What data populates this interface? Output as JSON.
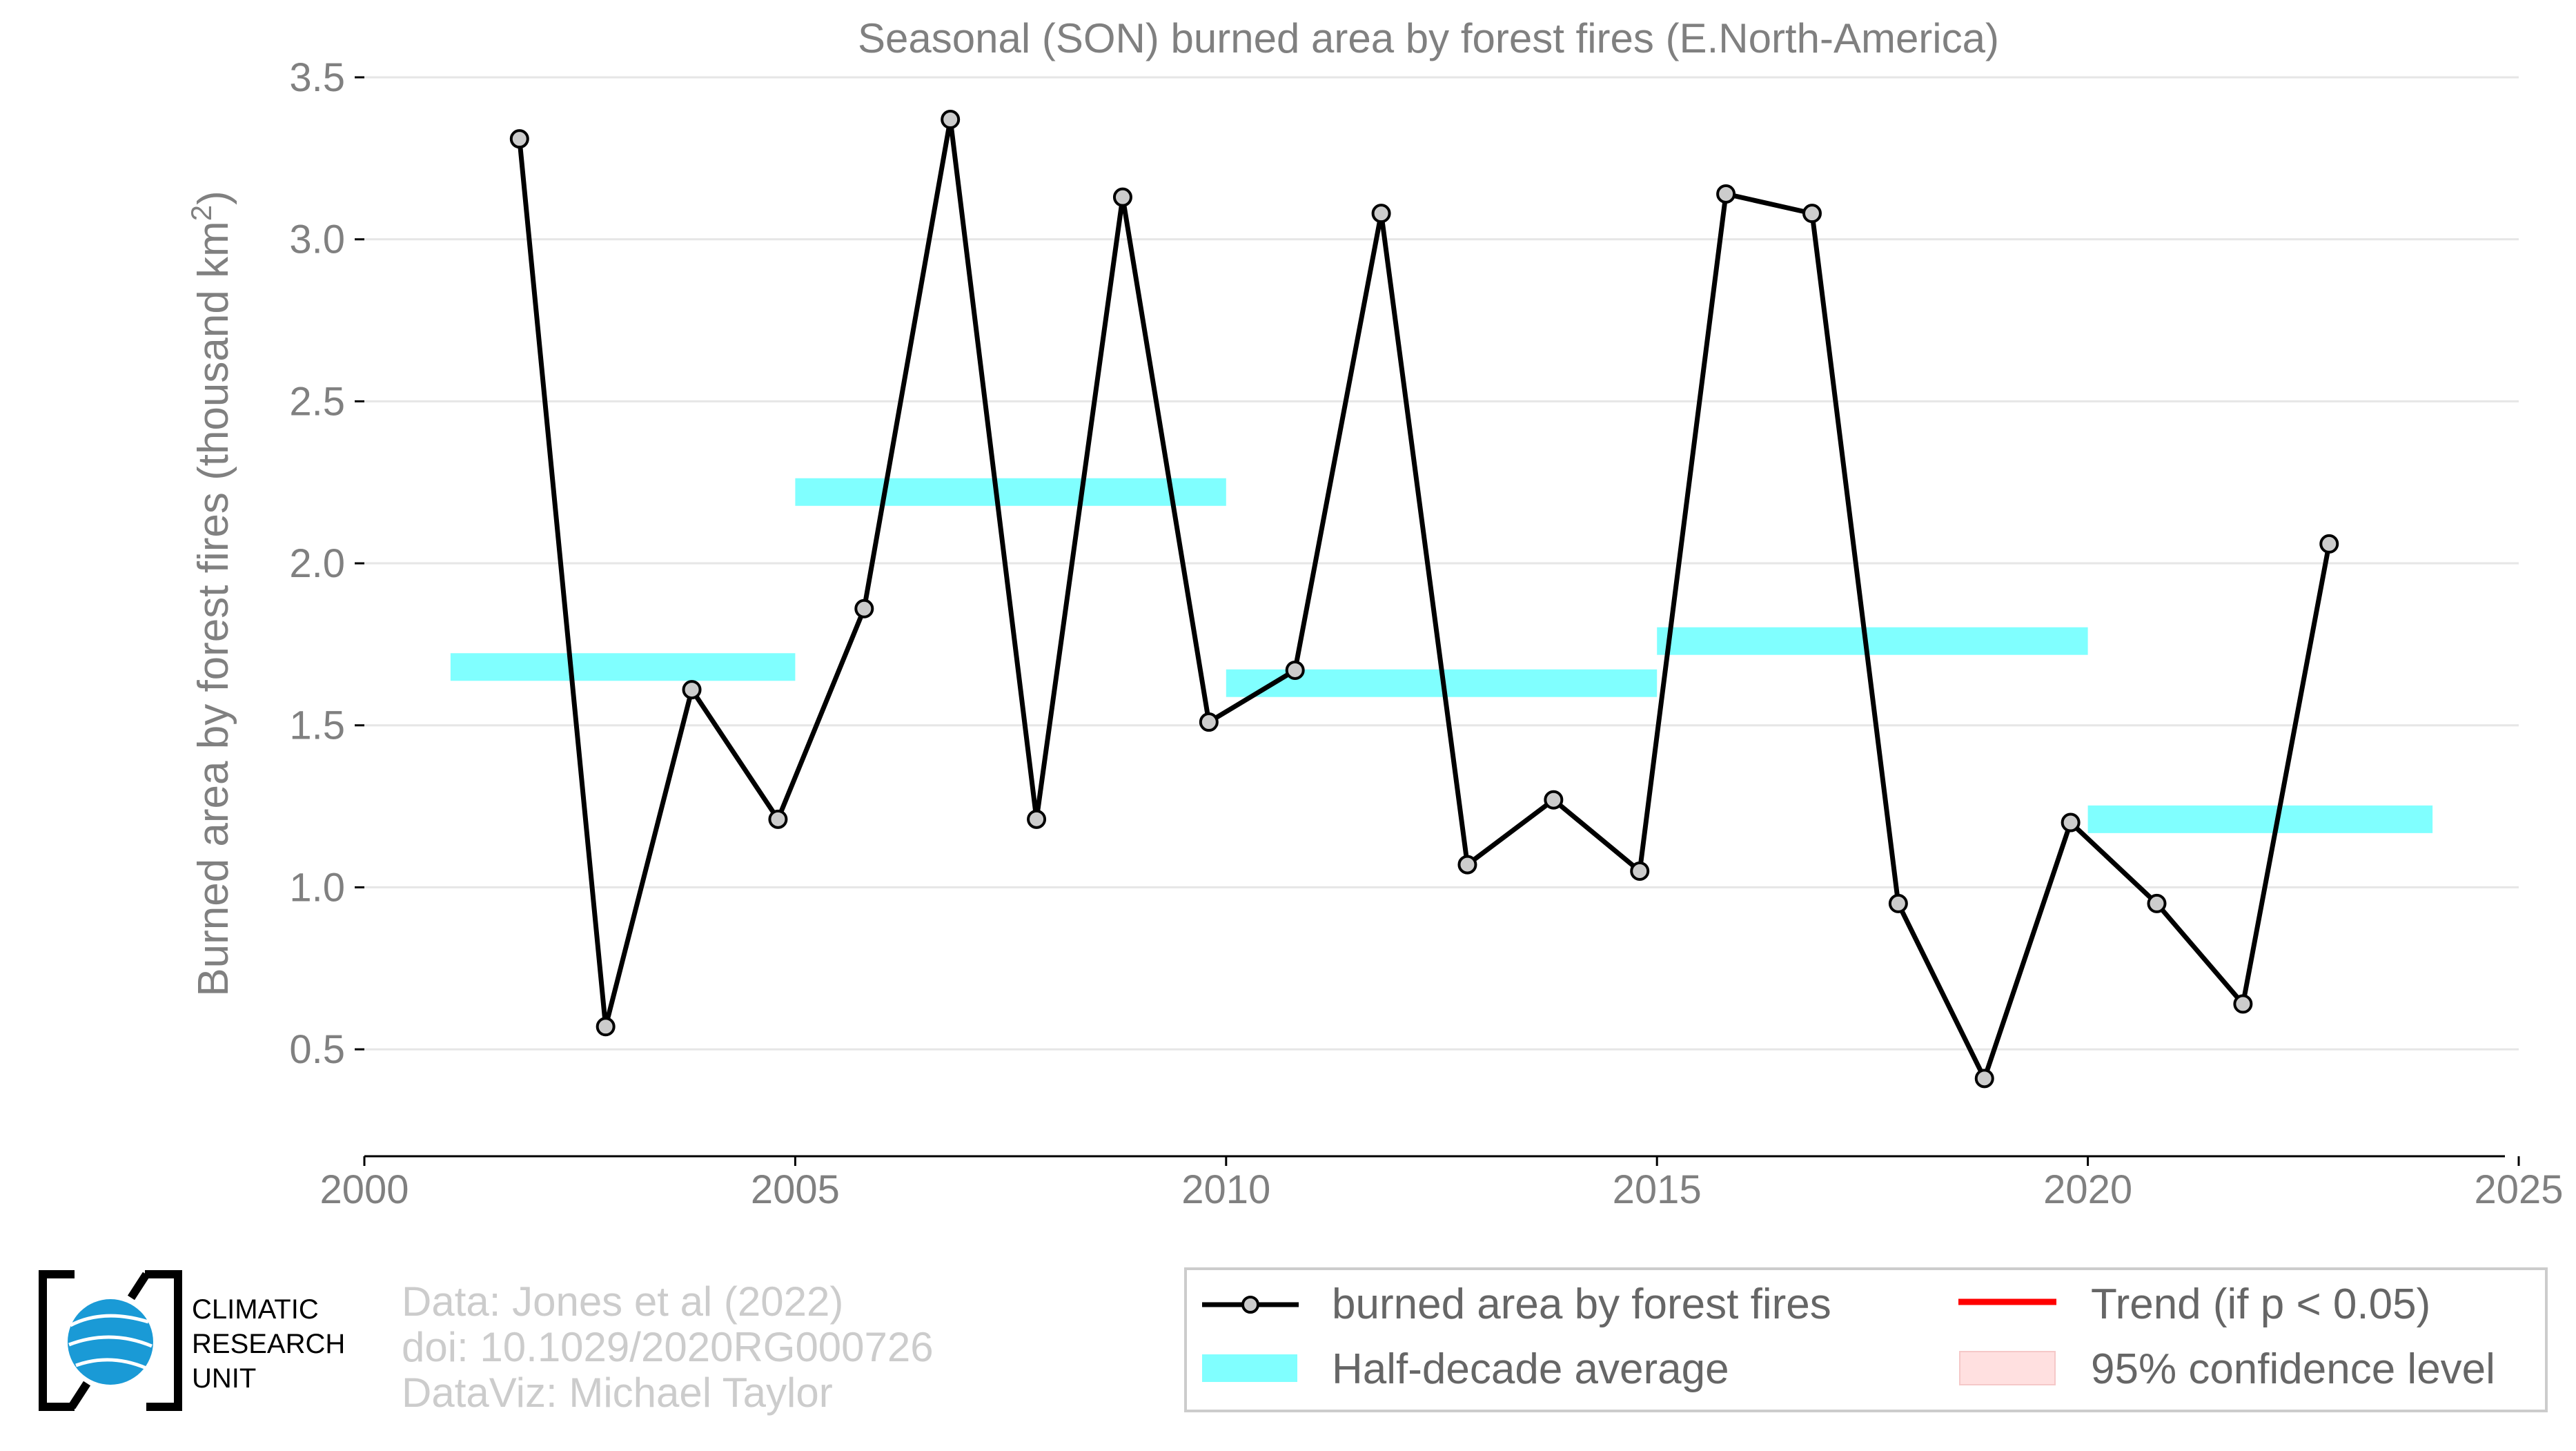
{
  "chart_data": {
    "type": "line",
    "title": "Seasonal (SON) burned area by forest fires (E.North-America)",
    "ylabel_main": "Burned area by forest fires (thousand km",
    "ylabel_sup": "2",
    "ylabel_end": ")",
    "xlabel": "",
    "xlim": [
      2000,
      2025
    ],
    "ylim": [
      0.17,
      3.5
    ],
    "xticks": [
      "2000",
      "2005",
      "2010",
      "2015",
      "2020",
      "2025"
    ],
    "yticks": [
      "0.5",
      "1.0",
      "1.5",
      "2.0",
      "2.5",
      "3.0",
      "3.5"
    ],
    "grid": "horizontal",
    "series": [
      {
        "name": "burned area by forest fires",
        "color": "#000000",
        "marker_fill": "#cccccc",
        "x": [
          2001.8,
          2002.8,
          2003.8,
          2004.8,
          2005.8,
          2006.8,
          2007.8,
          2008.8,
          2009.8,
          2010.8,
          2011.8,
          2012.8,
          2013.8,
          2014.8,
          2015.8,
          2016.8,
          2017.8,
          2018.8,
          2019.8,
          2020.8,
          2021.8,
          2022.8
        ],
        "y": [
          3.31,
          0.57,
          1.61,
          1.21,
          1.86,
          3.37,
          1.21,
          3.13,
          1.51,
          1.67,
          3.08,
          1.07,
          1.27,
          1.05,
          3.14,
          3.08,
          0.95,
          0.41,
          1.2,
          0.95,
          0.64,
          2.06
        ]
      }
    ],
    "half_decade_average": {
      "name": "Half-decade average",
      "color": "#80ffff",
      "segments": [
        {
          "x0": 2001,
          "x1": 2005,
          "y": 1.68
        },
        {
          "x0": 2005,
          "x1": 2010,
          "y": 2.22
        },
        {
          "x0": 2010,
          "x1": 2015,
          "y": 1.63
        },
        {
          "x0": 2015,
          "x1": 2020,
          "y": 1.76
        },
        {
          "x0": 2020,
          "x1": 2024,
          "y": 1.21
        }
      ]
    },
    "legend": {
      "placement": "bottom-right",
      "entries": [
        {
          "label": "burned area by forest fires",
          "kind": "line-marker",
          "color": "#000000"
        },
        {
          "label": "Trend (if p < 0.05)",
          "kind": "line",
          "color": "#ff0000"
        },
        {
          "label": "Half-decade average",
          "kind": "band",
          "color": "#80ffff"
        },
        {
          "label": "95% confidence level",
          "kind": "band",
          "color": "#ffe0e0"
        }
      ]
    }
  },
  "credits": {
    "line1": "Data: Jones et al (2022)",
    "line2": "doi: 10.1029/2020RG000726",
    "line3": "DataViz: Michael Taylor"
  },
  "logo": {
    "line1": "CLIMATIC",
    "line2": "RESEARCH",
    "line3": "UNIT",
    "globe_color": "#1a9ad6"
  }
}
